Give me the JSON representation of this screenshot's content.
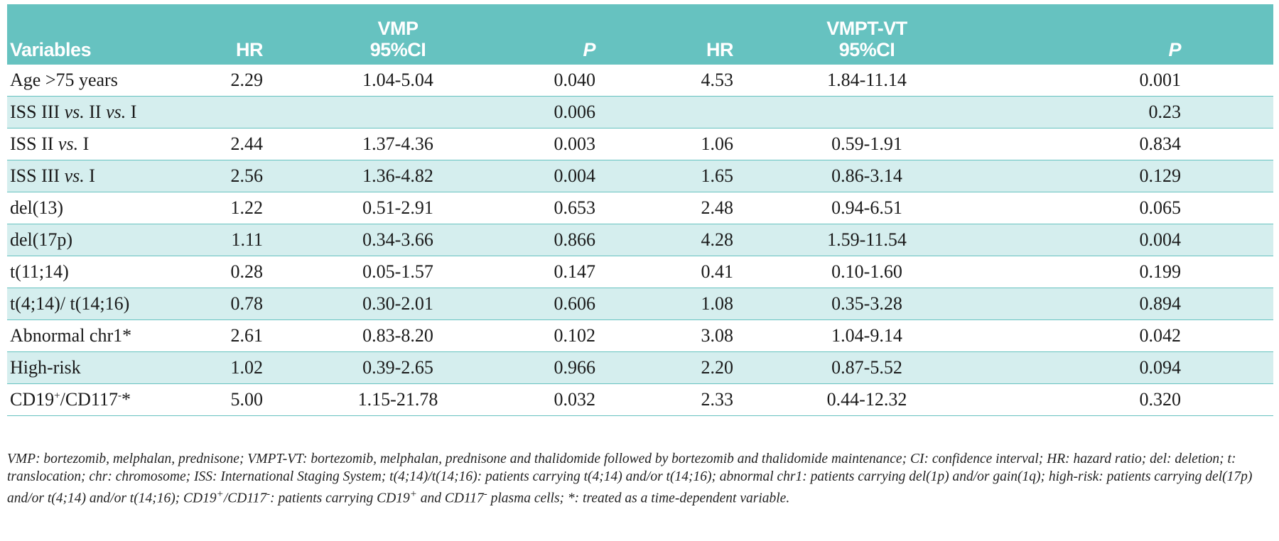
{
  "table": {
    "headers": {
      "variables": "Variables",
      "vmp_group": "VMP",
      "vmpt_group": "VMPT-VT",
      "hr": "HR",
      "ci": "95%CI",
      "p": "P"
    },
    "rows": [
      {
        "variable": "Age >75 years",
        "vmp_hr": "2.29",
        "vmp_ci": "1.04-5.04",
        "vmp_p": "0.040",
        "vmpt_hr": "4.53",
        "vmpt_ci": "1.84-11.14",
        "vmpt_p": "0.001"
      },
      {
        "variable_parts": [
          "ISS III ",
          "vs.",
          " II ",
          "vs.",
          " I"
        ],
        "vmp_hr": "",
        "vmp_ci": "",
        "vmp_p": "0.006",
        "vmpt_hr": "",
        "vmpt_ci": "",
        "vmpt_p": "0.23"
      },
      {
        "variable_parts": [
          "ISS II ",
          "vs.",
          " I"
        ],
        "vmp_hr": "2.44",
        "vmp_ci": "1.37-4.36",
        "vmp_p": "0.003",
        "vmpt_hr": "1.06",
        "vmpt_ci": "0.59-1.91",
        "vmpt_p": "0.834"
      },
      {
        "variable_parts": [
          "ISS III ",
          "vs.",
          " I"
        ],
        "vmp_hr": "2.56",
        "vmp_ci": "1.36-4.82",
        "vmp_p": "0.004",
        "vmpt_hr": "1.65",
        "vmpt_ci": "0.86-3.14",
        "vmpt_p": "0.129"
      },
      {
        "variable": "del(13)",
        "vmp_hr": "1.22",
        "vmp_ci": "0.51-2.91",
        "vmp_p": "0.653",
        "vmpt_hr": "2.48",
        "vmpt_ci": "0.94-6.51",
        "vmpt_p": "0.065"
      },
      {
        "variable": "del(17p)",
        "vmp_hr": "1.11",
        "vmp_ci": "0.34-3.66",
        "vmp_p": "0.866",
        "vmpt_hr": "4.28",
        "vmpt_ci": "1.59-11.54",
        "vmpt_p": "0.004"
      },
      {
        "variable": "t(11;14)",
        "vmp_hr": "0.28",
        "vmp_ci": "0.05-1.57",
        "vmp_p": "0.147",
        "vmpt_hr": "0.41",
        "vmpt_ci": "0.10-1.60",
        "vmpt_p": "0.199"
      },
      {
        "variable": "t(4;14)/ t(14;16)",
        "vmp_hr": "0.78",
        "vmp_ci": "0.30-2.01",
        "vmp_p": "0.606",
        "vmpt_hr": "1.08",
        "vmpt_ci": "0.35-3.28",
        "vmpt_p": "0.894"
      },
      {
        "variable": "Abnormal chr1*",
        "vmp_hr": "2.61",
        "vmp_ci": "0.83-8.20",
        "vmp_p": "0.102",
        "vmpt_hr": "3.08",
        "vmpt_ci": "1.04-9.14",
        "vmpt_p": "0.042"
      },
      {
        "variable": "High-risk",
        "vmp_hr": "1.02",
        "vmp_ci": "0.39-2.65",
        "vmp_p": "0.966",
        "vmpt_hr": "2.20",
        "vmpt_ci": "0.87-5.52",
        "vmpt_p": "0.094"
      },
      {
        "variable_parts": [
          "CD19",
          "+",
          "/CD117",
          "-",
          "*"
        ],
        "vmp_hr": "5.00",
        "vmp_ci": "1.15-21.78",
        "vmp_p": "0.032",
        "vmpt_hr": "2.33",
        "vmpt_ci": "0.44-12.32",
        "vmpt_p": "0.320"
      }
    ]
  },
  "footnote": {
    "part1": "VMP: bortezomib, melphalan, prednisone; VMPT-VT: bortezomib, melphalan, prednisone and thalidomide followed by bortezomib and thalidomide maintenance; CI: confidence interval; HR: hazard ratio; del: deletion; t: translocation; chr: chromosome; ISS: International Staging System; t(4;14)/t(14;16): patients carrying t(4;14) and/or t(14;16); abnormal chr1: patients carrying del(1p) and/or gain(1q); high-risk: patients carrying del(17p) and/or t(4;14) and/or t(14;16); CD19",
    "sup1": "+",
    "part2": "/CD117",
    "sup2": "-",
    "part3": ": patients carrying CD19",
    "sup3": "+",
    "part4": " and CD117",
    "sup4": "-",
    "part5": " plasma cells; *: treated as a time-dependent variable."
  },
  "colors": {
    "header_bg": "#66c2c0",
    "alt_row_bg": "#d5eeee",
    "header_text": "#ffffff"
  }
}
